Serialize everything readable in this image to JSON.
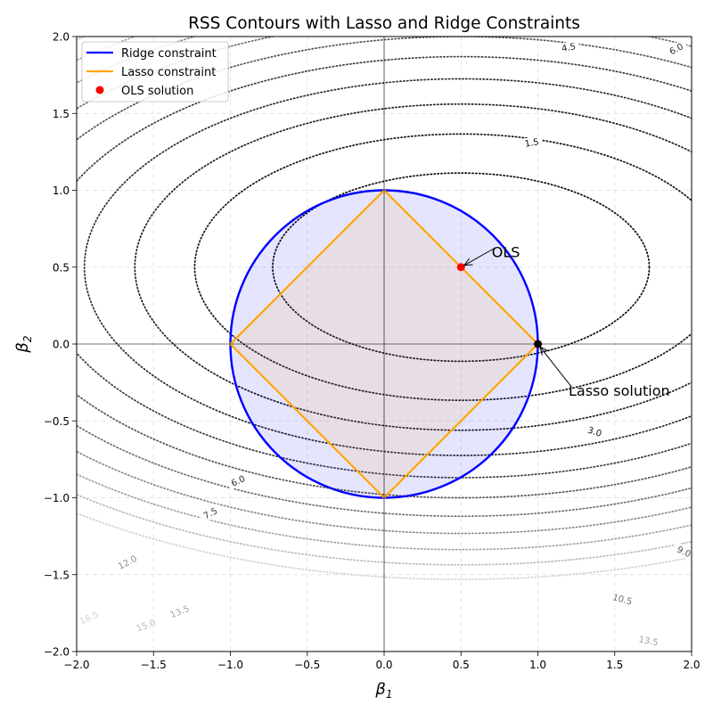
{
  "chart_data": {
    "type": "contour",
    "title": "RSS Contours with Lasso and Ridge Constraints",
    "xlabel_base": "β",
    "xlabel_sub": "1",
    "ylabel_base": "β",
    "ylabel_sub": "2",
    "xlim": [
      -2,
      2
    ],
    "ylim": [
      -2,
      2
    ],
    "xticks": [
      -2.0,
      -1.5,
      -1.0,
      -0.5,
      0.0,
      0.5,
      1.0,
      1.5,
      2.0
    ],
    "yticks": [
      -2.0,
      -1.5,
      -1.0,
      -0.5,
      0.0,
      0.5,
      1.0,
      1.5,
      2.0
    ],
    "grid": true,
    "rss_center": [
      0.5,
      0.5
    ],
    "rss_axis_scale": [
      1.0,
      4.0
    ],
    "contour_levels": [
      1.5,
      3.0,
      4.5,
      6.0,
      7.5,
      9.0,
      10.5,
      12.0,
      13.5,
      15.0,
      16.5
    ],
    "contour_colors": [
      "#0d0d0d",
      "#151515",
      "#1f1f1f",
      "#2c2c2c",
      "#3d3d3d",
      "#555555",
      "#6f6f6f",
      "#8a8a8a",
      "#a3a3a3",
      "#bbbbbb",
      "#d2d2d2"
    ],
    "contour_labels": [
      {
        "text": "1.5",
        "x": 0.96,
        "y": 1.31,
        "angle": 10
      },
      {
        "text": "3.0",
        "x": 1.37,
        "y": -0.57,
        "angle": -18
      },
      {
        "text": "4.5",
        "x": 1.2,
        "y": 1.93,
        "angle": 10
      },
      {
        "text": "6.0",
        "x": 1.9,
        "y": 1.92,
        "angle": 28
      },
      {
        "text": "6.0",
        "x": -0.95,
        "y": -0.89,
        "angle": 25
      },
      {
        "text": "7.5",
        "x": -1.13,
        "y": -1.1,
        "angle": 28
      },
      {
        "text": "9.0",
        "x": 1.95,
        "y": -1.35,
        "angle": -25
      },
      {
        "text": "10.5",
        "x": 1.55,
        "y": -1.66,
        "angle": -15
      },
      {
        "text": "12.0",
        "x": -1.67,
        "y": -1.42,
        "angle": 28
      },
      {
        "text": "13.5",
        "x": -1.33,
        "y": -1.74,
        "angle": 22
      },
      {
        "text": "13.5",
        "x": 1.72,
        "y": -1.93,
        "angle": -10
      },
      {
        "text": "15.0",
        "x": -1.55,
        "y": -1.83,
        "angle": 20
      },
      {
        "text": "16.5",
        "x": -1.92,
        "y": -1.78,
        "angle": 25
      }
    ],
    "ridge": {
      "name": "Ridge constraint",
      "radius": 1.0,
      "color": "#0000ff",
      "fill": "#0000ff",
      "fill_opacity": 0.1
    },
    "lasso": {
      "name": "Lasso constraint",
      "vertices": [
        [
          1,
          0
        ],
        [
          0,
          1
        ],
        [
          -1,
          0
        ],
        [
          0,
          -1
        ]
      ],
      "color": "#ffa500",
      "fill": "#ffa500",
      "fill_opacity": 0.1
    },
    "ols": {
      "name": "OLS solution",
      "x": 0.5,
      "y": 0.5,
      "color": "#ff0000"
    },
    "lasso_solution": {
      "x": 1.0,
      "y": 0.0,
      "color": "#000000"
    },
    "annotations": [
      {
        "text": "OLS",
        "x": 0.5,
        "y": 0.5,
        "text_x": 0.7,
        "text_y": 0.6
      },
      {
        "text": "Lasso solution",
        "x": 1.0,
        "y": 0.0,
        "text_x": 1.2,
        "text_y": -0.3
      }
    ],
    "legend": {
      "position": "top-left"
    }
  }
}
